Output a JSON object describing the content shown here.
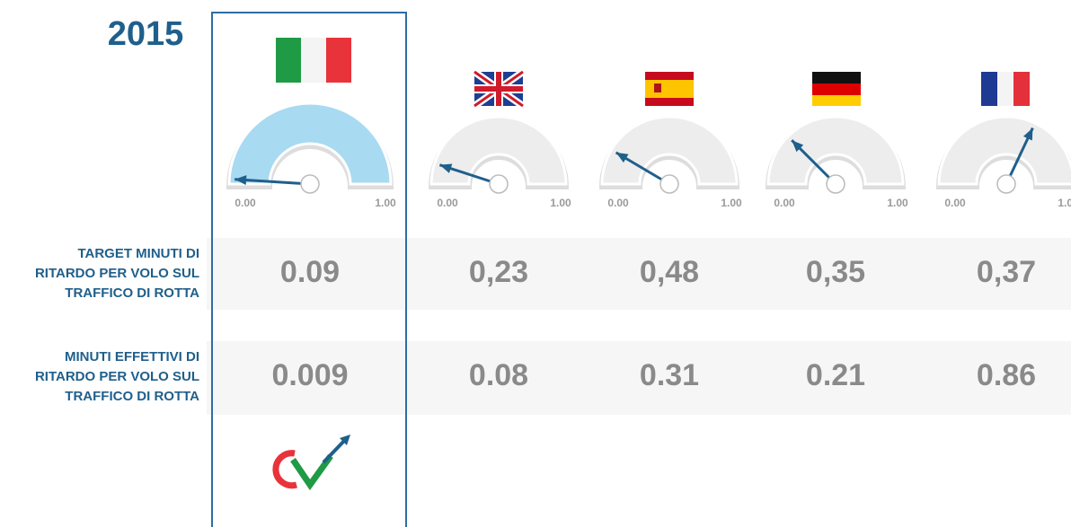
{
  "title": "2015",
  "rows": [
    "TARGET MINUTI DI|RITARDO  PER VOLO SUL|TRAFFICO DI ROTTA",
    "MINUTI EFFETTIVI DI|RITARDO PER VOLO SUL|TRAFFICO DI ROTTA"
  ],
  "gauge_min": "0.00",
  "gauge_max": "1.00",
  "countries": [
    {
      "target": "0.09",
      "effective": "0.009",
      "needle": 0.02,
      "gauge_color": "#a8daf2"
    },
    {
      "target": "0,23",
      "effective": "0.08",
      "needle": 0.1,
      "gauge_color": "#ededed"
    },
    {
      "target": "0,48",
      "effective": "0.31",
      "needle": 0.17,
      "gauge_color": "#ededed"
    },
    {
      "target": "0,35",
      "effective": "0.21",
      "needle": 0.25,
      "gauge_color": "#ededed"
    },
    {
      "target": "0,37",
      "effective": "0.86",
      "needle": 0.64,
      "gauge_color": "#ededed"
    }
  ]
}
